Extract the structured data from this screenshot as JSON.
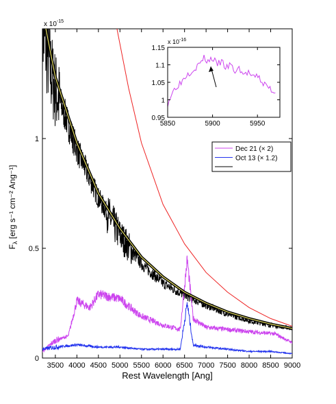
{
  "chart_data": [
    {
      "type": "line",
      "xlabel": "Rest Wavelength [Ang]",
      "ylabel": "F",
      "ylabel_subscript": "λ",
      "ylabel_units": "[erg s⁻¹ cm⁻² Ang⁻¹]",
      "y_exponent_label": "x 10",
      "y_exponent_power": "-15",
      "xlim": [
        3200,
        9000
      ],
      "ylim": [
        0,
        1.5e-15
      ],
      "x_ticks": [
        3500,
        4000,
        4500,
        5000,
        5500,
        6000,
        6500,
        7000,
        7500,
        8000,
        8500,
        9000
      ],
      "y_ticks": [
        0,
        5e-16,
        1e-15
      ],
      "y_tick_labels": [
        "0",
        "0.5",
        "1"
      ],
      "legend_position": "right",
      "legend": [
        {
          "label": "Dec 21 (× 2)",
          "color": "#cc44ee"
        },
        {
          "label": "Oct 13 (× 1.2)",
          "color": "#2233ee"
        },
        {
          "label": "",
          "color": "#000000"
        }
      ],
      "series": [
        {
          "color": "#000000",
          "x": [
            3200,
            3300,
            3400,
            3500,
            3700,
            4000,
            4500,
            5000,
            5500,
            6000,
            6500,
            7000,
            7500,
            8000,
            8500,
            9000
          ],
          "y": [
            1.5e-15,
            1.4e-15,
            1.3e-15,
            1.22e-15,
            1.12e-15,
            9.5e-16,
            7.3e-16,
            5.6e-16,
            4.3e-16,
            3.4e-16,
            2.85e-16,
            2.4e-16,
            2e-16,
            1.7e-16,
            1.5e-16,
            1.35e-16
          ]
        },
        {
          "color": "#cc44ee",
          "x": [
            3200,
            3500,
            3800,
            4000,
            4300,
            4500,
            5000,
            5300,
            5500,
            6000,
            6400,
            6563,
            6700,
            7000,
            7500,
            8000,
            8600,
            9000
          ],
          "y": [
            3e-17,
            8e-17,
            1e-16,
            2.6e-16,
            2.3e-16,
            2.9e-16,
            2.7e-16,
            2.2e-16,
            1.9e-16,
            1.5e-16,
            1.3e-16,
            4.5e-16,
            1.8e-16,
            1.4e-16,
            1.3e-16,
            1.2e-16,
            1.1e-16,
            7e-17
          ]
        },
        {
          "color": "#2233ee",
          "x": [
            3200,
            3500,
            4000,
            4500,
            5000,
            5500,
            6000,
            6400,
            6563,
            6700,
            7000,
            7500,
            8000,
            8500,
            9000
          ],
          "y": [
            4e-17,
            5e-17,
            6e-17,
            5e-17,
            5e-17,
            4e-17,
            4e-17,
            4e-17,
            2.5e-16,
            6e-17,
            5e-17,
            4e-17,
            3e-17,
            3e-17,
            2e-17
          ]
        },
        {
          "color": "#000000",
          "x": [
            3200,
            3500,
            4000,
            4500,
            5000,
            5500,
            6000,
            6500,
            7000,
            7500,
            8000,
            8500,
            9000
          ],
          "y": [
            1.58e-15,
            1.28e-15,
            9.8e-16,
            7.5e-16,
            5.9e-16,
            4.6e-16,
            3.7e-16,
            3e-16,
            2.5e-16,
            2.1e-16,
            1.8e-16,
            1.55e-16,
            1.35e-16
          ]
        },
        {
          "color": "#ee2222",
          "x": [
            4930,
            5200,
            5500,
            6000,
            6500,
            7000,
            7500,
            8000,
            8500,
            9000
          ],
          "y": [
            1.5e-15,
            1.23e-15,
            9.8e-16,
            7e-16,
            5.2e-16,
            3.9e-16,
            3e-16,
            2.3e-16,
            1.8e-16,
            1.45e-16
          ]
        }
      ]
    },
    {
      "type": "line",
      "y_exponent_label": "x 10",
      "y_exponent_power": "-16",
      "xlim": [
        5850,
        5975
      ],
      "ylim": [
        0.95,
        1.15
      ],
      "x_ticks": [
        5850,
        5900,
        5950
      ],
      "y_ticks": [
        0.95,
        1.0,
        1.05,
        1.1,
        1.15
      ],
      "y_tick_labels": [
        "0.95",
        "1",
        "1.05",
        "1.1",
        "1.15"
      ],
      "arrow_points_to": {
        "x": 5898,
        "y": 1.095
      },
      "series": [
        {
          "color": "#cc44ee",
          "x": [
            5850,
            5855,
            5860,
            5865,
            5870,
            5875,
            5880,
            5885,
            5890,
            5895,
            5900,
            5905,
            5910,
            5915,
            5920,
            5925,
            5930,
            5935,
            5940,
            5945,
            5950,
            5955,
            5960,
            5965,
            5970
          ],
          "y": [
            0.99,
            1.02,
            1.04,
            1.05,
            1.07,
            1.08,
            1.09,
            1.1,
            1.12,
            1.11,
            1.12,
            1.1,
            1.11,
            1.09,
            1.1,
            1.08,
            1.09,
            1.07,
            1.08,
            1.06,
            1.07,
            1.05,
            1.04,
            1.03,
            1.02
          ]
        }
      ]
    }
  ]
}
